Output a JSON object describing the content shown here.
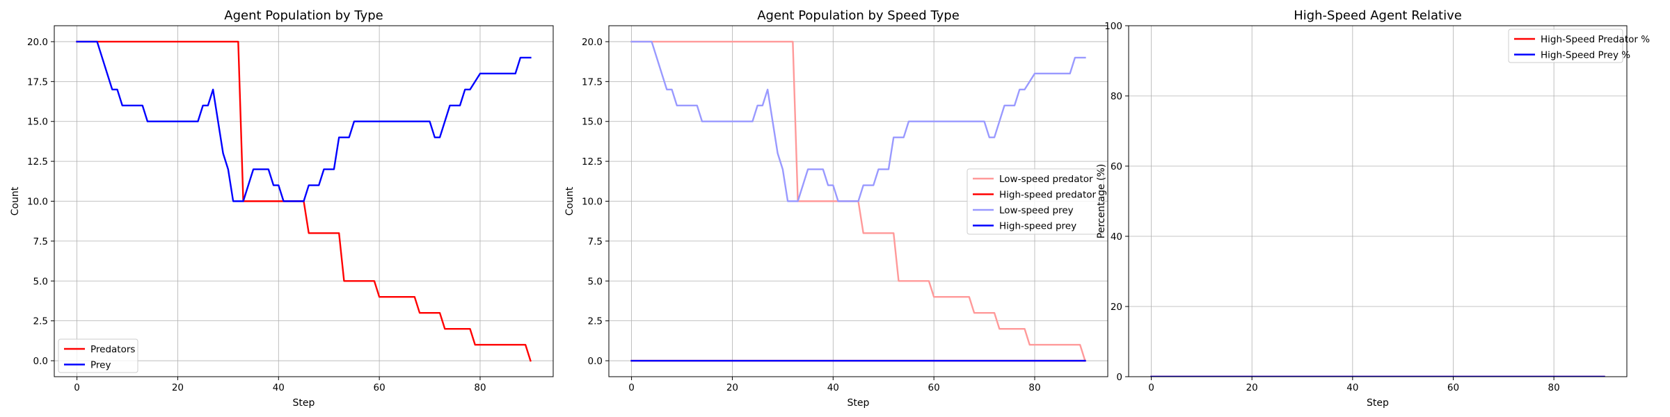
{
  "chart_data": [
    {
      "type": "line",
      "title": "Agent Population by Type",
      "xlabel": "Step",
      "ylabel": "Count",
      "xlim": [
        -4.5,
        94.5
      ],
      "ylim": [
        -1,
        21
      ],
      "xticks": [
        0,
        20,
        40,
        60,
        80
      ],
      "yticks": [
        0.0,
        2.5,
        5.0,
        7.5,
        10.0,
        12.5,
        15.0,
        17.5,
        20.0
      ],
      "ytick_labels": [
        "0.0",
        "2.5",
        "5.0",
        "7.5",
        "10.0",
        "12.5",
        "15.0",
        "17.5",
        "20.0"
      ],
      "grid": true,
      "legend_position": "lower-left",
      "series": [
        {
          "name": "Predators",
          "color": "#ff0000",
          "x": [
            0,
            32,
            33,
            45,
            46,
            52,
            53,
            59,
            60,
            67,
            68,
            72,
            73,
            78,
            79,
            89,
            90
          ],
          "y": [
            20,
            20,
            10,
            10,
            8,
            8,
            5,
            5,
            4,
            4,
            3,
            3,
            2,
            2,
            1,
            1,
            0
          ]
        },
        {
          "name": "Prey",
          "color": "#0000ff",
          "x": [
            0,
            4,
            7,
            8,
            9,
            13,
            14,
            24,
            25,
            26,
            27,
            29,
            30,
            31,
            33,
            35,
            38,
            39,
            40,
            41,
            45,
            46,
            48,
            49,
            51,
            52,
            54,
            55,
            57,
            58,
            70,
            71,
            72,
            74,
            76,
            77,
            78,
            80,
            87,
            88,
            90
          ],
          "y": [
            20,
            20,
            17,
            17,
            16,
            16,
            15,
            15,
            16,
            16,
            17,
            13,
            12,
            10,
            10,
            12,
            12,
            11,
            11,
            10,
            10,
            11,
            11,
            12,
            12,
            14,
            14,
            15,
            15,
            15,
            15,
            14,
            14,
            16,
            16,
            17,
            17,
            18,
            18,
            19,
            19
          ]
        }
      ]
    },
    {
      "type": "line",
      "title": "Agent Population by Speed Type",
      "xlabel": "Step",
      "ylabel": "Count",
      "xlim": [
        -4.5,
        94.5
      ],
      "ylim": [
        -1,
        21
      ],
      "xticks": [
        0,
        20,
        40,
        60,
        80
      ],
      "yticks": [
        0.0,
        2.5,
        5.0,
        7.5,
        10.0,
        12.5,
        15.0,
        17.5,
        20.0
      ],
      "ytick_labels": [
        "0.0",
        "2.5",
        "5.0",
        "7.5",
        "10.0",
        "12.5",
        "15.0",
        "17.5",
        "20.0"
      ],
      "grid": true,
      "legend_position": "center-right",
      "series": [
        {
          "name": "Low-speed predator",
          "color": "#ff9999",
          "x": [
            0,
            32,
            33,
            45,
            46,
            52,
            53,
            59,
            60,
            67,
            68,
            72,
            73,
            78,
            79,
            89,
            90
          ],
          "y": [
            20,
            20,
            10,
            10,
            8,
            8,
            5,
            5,
            4,
            4,
            3,
            3,
            2,
            2,
            1,
            1,
            0
          ]
        },
        {
          "name": "High-speed predator",
          "color": "#ff0000",
          "x": [
            0,
            90
          ],
          "y": [
            0,
            0
          ]
        },
        {
          "name": "Low-speed prey",
          "color": "#9999ff",
          "x": [
            0,
            4,
            7,
            8,
            9,
            13,
            14,
            24,
            25,
            26,
            27,
            29,
            30,
            31,
            33,
            35,
            38,
            39,
            40,
            41,
            45,
            46,
            48,
            49,
            51,
            52,
            54,
            55,
            57,
            58,
            70,
            71,
            72,
            74,
            76,
            77,
            78,
            80,
            87,
            88,
            90
          ],
          "y": [
            20,
            20,
            17,
            17,
            16,
            16,
            15,
            15,
            16,
            16,
            17,
            13,
            12,
            10,
            10,
            12,
            12,
            11,
            11,
            10,
            10,
            11,
            11,
            12,
            12,
            14,
            14,
            15,
            15,
            15,
            15,
            14,
            14,
            16,
            16,
            17,
            17,
            18,
            18,
            19,
            19
          ]
        },
        {
          "name": "High-speed prey",
          "color": "#0000ff",
          "x": [
            0,
            90
          ],
          "y": [
            0,
            0
          ]
        }
      ]
    },
    {
      "type": "line",
      "title": "High-Speed Agent Relative",
      "xlabel": "Step",
      "ylabel": "Percentage (%)",
      "xlim": [
        -4.5,
        94.5
      ],
      "ylim": [
        0,
        100
      ],
      "xticks": [
        0,
        20,
        40,
        60,
        80
      ],
      "yticks": [
        0,
        20,
        40,
        60,
        80,
        100
      ],
      "ytick_labels": [
        "0",
        "20",
        "40",
        "60",
        "80",
        "100"
      ],
      "grid": true,
      "legend_position": "top-right",
      "series": [
        {
          "name": "High-Speed Predator %",
          "color": "#ff0000",
          "x": [
            0,
            90
          ],
          "y": [
            0,
            0
          ]
        },
        {
          "name": "High-Speed Prey %",
          "color": "#0000ff",
          "x": [
            0,
            90
          ],
          "y": [
            0,
            0
          ]
        }
      ]
    }
  ]
}
